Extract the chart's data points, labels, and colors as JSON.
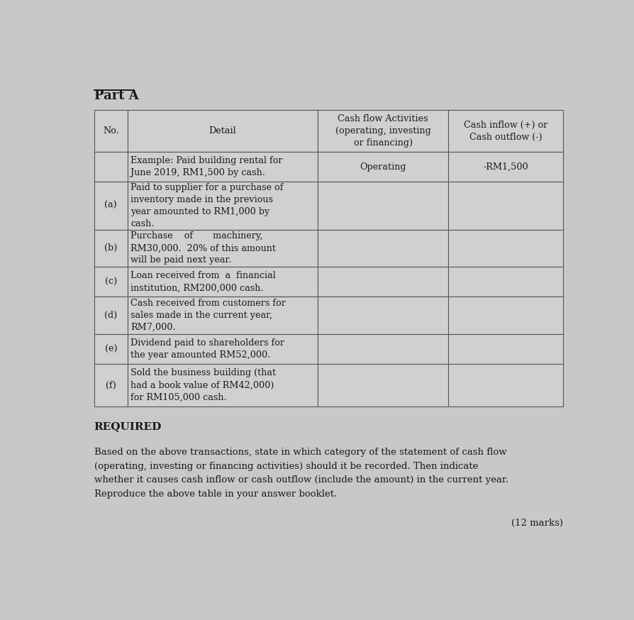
{
  "title": "Part A",
  "bg_color": "#c8c8c8",
  "cell_bg": "#d0d0d0",
  "text_color": "#1a1a1a",
  "col_headers": [
    "No.",
    "Detail",
    "Cash flow Activities\n(operating, investing\nor financing)",
    "Cash inflow (+) or\nCash outflow (-)"
  ],
  "example_row": {
    "no": "",
    "detail": "Example: Paid building rental for\nJune 2019, RM1,500 by cash.",
    "activity": "Operating",
    "cashflow": "-RM1,500"
  },
  "rows": [
    {
      "no": "(a)",
      "detail": "Paid to supplier for a purchase of\ninventory made in the previous\nyear amounted to RM1,000 by\ncash.",
      "activity": "",
      "cashflow": ""
    },
    {
      "no": "(b)",
      "detail": "Purchase    of       machinery,\nRM30,000.  20% of this amount\nwill be paid next year.",
      "activity": "",
      "cashflow": ""
    },
    {
      "no": "(c)",
      "detail": "Loan received from  a  financial\ninstitution, RM200,000 cash.",
      "activity": "",
      "cashflow": ""
    },
    {
      "no": "(d)",
      "detail": "Cash received from customers for\nsales made in the current year,\nRM7,000.",
      "activity": "",
      "cashflow": ""
    },
    {
      "no": "(e)",
      "detail": "Dividend paid to shareholders for\nthe year amounted RM52,000.",
      "activity": "",
      "cashflow": ""
    },
    {
      "no": "(f)",
      "detail": "Sold the business building (that\nhad a book value of RM42,000)\nfor RM105,000 cash.",
      "activity": "",
      "cashflow": ""
    }
  ],
  "required_label": "REQUIRED",
  "required_text": "Based on the above transactions, state in which category of the statement of cash flow\n(operating, investing or financing activities) should it be recorded. Then indicate\nwhether it causes cash inflow or cash outflow (include the amount) in the current year.\nReproduce the above table in your answer booklet.",
  "marks_text": "(12 marks)"
}
